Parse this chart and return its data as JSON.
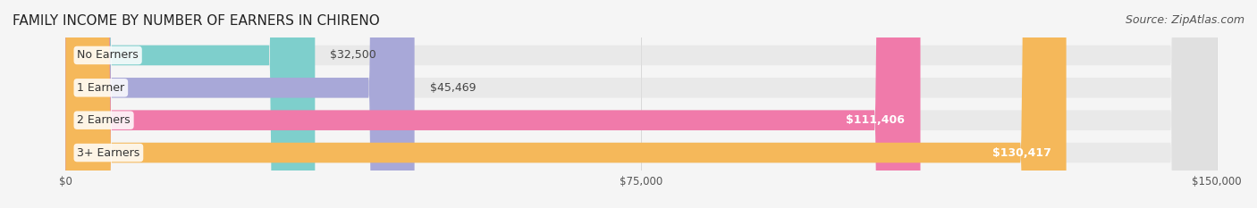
{
  "title": "FAMILY INCOME BY NUMBER OF EARNERS IN CHIRENO",
  "source": "Source: ZipAtlas.com",
  "categories": [
    "No Earners",
    "1 Earner",
    "2 Earners",
    "3+ Earners"
  ],
  "values": [
    32500,
    45469,
    111406,
    130417
  ],
  "labels": [
    "$32,500",
    "$45,469",
    "$111,406",
    "$130,417"
  ],
  "bar_colors": [
    "#7ecfcc",
    "#a8a8d8",
    "#f07aaa",
    "#f5b85a"
  ],
  "bar_bg_color": "#e8e8e8",
  "max_value": 150000,
  "xticks": [
    0,
    75000,
    150000
  ],
  "xtick_labels": [
    "$0",
    "$75,000",
    "$150,000"
  ],
  "title_fontsize": 11,
  "source_fontsize": 9,
  "label_fontsize": 9,
  "category_fontsize": 9,
  "background_color": "#f5f5f5",
  "bar_bg_alpha": 0.5,
  "label_inside_threshold": 90000
}
